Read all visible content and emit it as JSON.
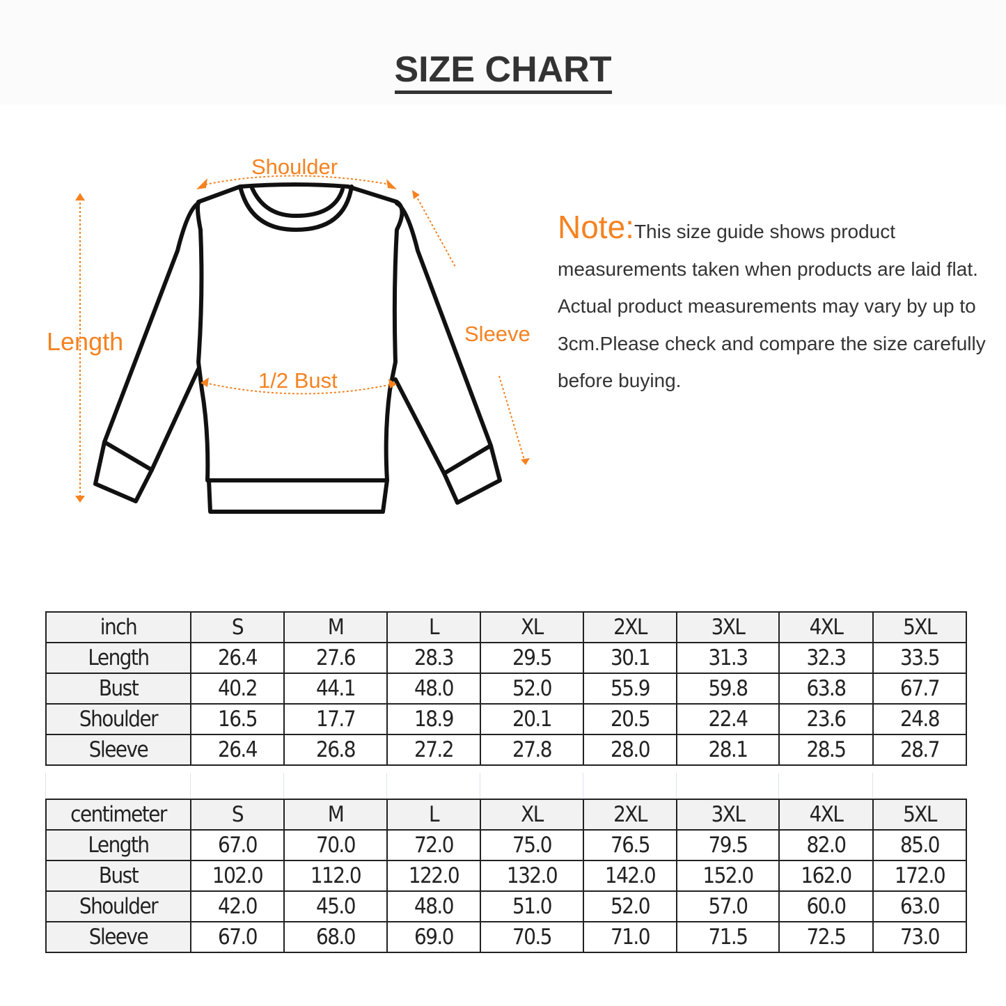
{
  "title": "SIZE CHART",
  "diagram": {
    "labels": {
      "shoulder": "Shoulder",
      "length": "Length",
      "sleeve": "Sleeve",
      "bust": "1/2 Bust"
    },
    "accent_color": "#f58220",
    "icon": "sweatshirt-outline"
  },
  "note": {
    "label": "Note:",
    "text": "This size guide shows product measurements taken when products are laid flat. Actual product measurements may vary by up to 3cm.Please check and compare the size carefully before buying."
  },
  "tables": [
    {
      "unit": "inch",
      "sizes": [
        "S",
        "M",
        "L",
        "XL",
        "2XL",
        "3XL",
        "4XL",
        "5XL"
      ],
      "rows": [
        {
          "label": "Length",
          "values": [
            "26.4",
            "27.6",
            "28.3",
            "29.5",
            "30.1",
            "31.3",
            "32.3",
            "33.5"
          ]
        },
        {
          "label": "Bust",
          "values": [
            "40.2",
            "44.1",
            "48.0",
            "52.0",
            "55.9",
            "59.8",
            "63.8",
            "67.7"
          ]
        },
        {
          "label": "Shoulder",
          "values": [
            "16.5",
            "17.7",
            "18.9",
            "20.1",
            "20.5",
            "22.4",
            "23.6",
            "24.8"
          ]
        },
        {
          "label": "Sleeve",
          "values": [
            "26.4",
            "26.8",
            "27.2",
            "27.8",
            "28.0",
            "28.1",
            "28.5",
            "28.7"
          ]
        }
      ]
    },
    {
      "unit": "centimeter",
      "sizes": [
        "S",
        "M",
        "L",
        "XL",
        "2XL",
        "3XL",
        "4XL",
        "5XL"
      ],
      "rows": [
        {
          "label": "Length",
          "values": [
            "67.0",
            "70.0",
            "72.0",
            "75.0",
            "76.5",
            "79.5",
            "82.0",
            "85.0"
          ]
        },
        {
          "label": "Bust",
          "values": [
            "102.0",
            "112.0",
            "122.0",
            "132.0",
            "142.0",
            "152.0",
            "162.0",
            "172.0"
          ]
        },
        {
          "label": "Shoulder",
          "values": [
            "42.0",
            "45.0",
            "48.0",
            "51.0",
            "52.0",
            "57.0",
            "60.0",
            "63.0"
          ]
        },
        {
          "label": "Sleeve",
          "values": [
            "67.0",
            "68.0",
            "69.0",
            "70.5",
            "71.0",
            "71.5",
            "72.5",
            "73.0"
          ]
        }
      ]
    }
  ]
}
